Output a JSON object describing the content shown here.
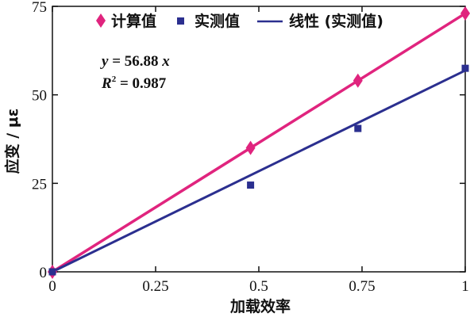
{
  "chart_data": {
    "type": "scatter",
    "xlabel": "加载效率",
    "ylabel": "应变 / με",
    "xlim": [
      0,
      1
    ],
    "ylim": [
      0,
      75
    ],
    "x_ticks": [
      0,
      0.25,
      0.5,
      0.75,
      1
    ],
    "x_tick_labels": [
      "0",
      "0.25",
      "0.5",
      "0.75",
      "1"
    ],
    "y_ticks": [
      0,
      25,
      50,
      75
    ],
    "y_tick_labels": [
      "0",
      "25",
      "50",
      "75"
    ],
    "grid": false,
    "legend_position": "top",
    "series": [
      {
        "name": "计算值",
        "kind": "line-markers",
        "marker": "diamond",
        "color": "#e0247e",
        "x": [
          0,
          0.48,
          0.74,
          1
        ],
        "y": [
          0,
          35,
          54,
          73
        ]
      },
      {
        "name": "实测值",
        "kind": "markers",
        "marker": "square",
        "color": "#2b2f8f",
        "x": [
          0,
          0.48,
          0.74,
          1
        ],
        "y": [
          0,
          24.5,
          40.5,
          57.5
        ]
      },
      {
        "name": "线性 (实测值)",
        "kind": "line",
        "color": "#2b2f8f",
        "x": [
          0,
          1
        ],
        "y": [
          0,
          56.88
        ]
      }
    ],
    "annotation": {
      "equation_lhs": "y",
      "equation_rhs": " = 56.88 ",
      "equation_var": "x",
      "r2_lhs": "R",
      "r2_sup": "2",
      "r2_rhs": " = 0.987"
    }
  }
}
